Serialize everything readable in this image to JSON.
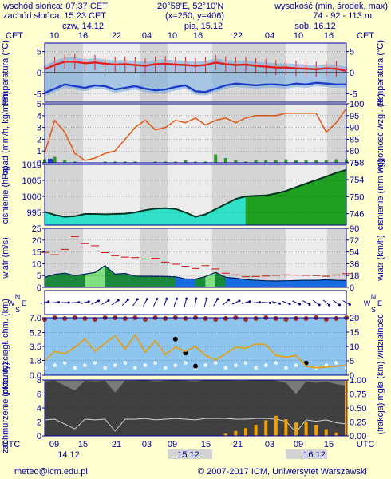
{
  "header": {
    "sunrise": "wschód słońca: 07:37 CET",
    "sunset": "zachód słońca: 15:23 CET",
    "coords": "20°58'E, 52°10'N",
    "grid": "(x=250, y=406)",
    "altitude_label": "wysokość (min, środek, max)",
    "altitude_values": "74 - 92 - 113 m"
  },
  "footer": {
    "email": "meteo@icm.edu.pl",
    "copyright": "© 2007-2017 ICM, Uniwersytet Warszawski"
  },
  "colors": {
    "background": "#ffffd0",
    "text": "#0000a0",
    "plot_bg": "#8ec5ee",
    "night_band": "#d4d4d4",
    "temperature": "#e02020",
    "dewpoint": "#1e3cc8",
    "humidity": "#e06020",
    "precip": "#2a9a2a",
    "pressure_fill": "#30e0c8",
    "pressure_fill_high": "#20a020",
    "wind_gust": "#d01010",
    "wind_fill": "#1a8a3a",
    "visibility": "#e0a020",
    "clouds_fill": "#404040",
    "fog_bars": "#f0a000"
  },
  "chart_data": {
    "type": "meteogram",
    "top_axis": {
      "timezone_label": "CET",
      "days": [
        "czw, 14.12",
        "pią, 15.12",
        "sob, 16.12"
      ],
      "ticks": [
        "10",
        "16",
        "22",
        "04",
        "10",
        "16",
        "22",
        "04",
        "10",
        "16"
      ]
    },
    "bottom_axis": {
      "timezone_label": "UTC",
      "ticks": [
        "09",
        "15",
        "21",
        "03",
        "09",
        "15",
        "21",
        "03",
        "09",
        "15"
      ],
      "dates": [
        "14.12",
        "15.12",
        "16.12"
      ]
    },
    "panels": [
      {
        "id": "temperature",
        "type": "line",
        "ylabel_left": "temperatura (°C)",
        "ylabel_right": "temperatura (°C)",
        "yticks": [
          -5,
          0,
          5
        ],
        "ylim": [
          -7,
          7
        ],
        "series": [
          {
            "values": [
              0.8,
              1.8,
              2.6,
              2.6,
              2.2,
              2.4,
              2.1,
              1.9,
              2.0,
              1.8,
              1.6,
              2.0,
              2.1,
              1.9,
              1.8,
              1.6,
              1.8,
              2.4,
              2.0,
              1.8,
              1.9,
              1.6,
              1.4,
              1.2,
              1.2,
              1.0,
              0.9,
              0.8,
              1.0,
              0.9,
              0.4
            ]
          },
          {
            "values": [
              -4.8,
              -3.8,
              -2.8,
              -3.2,
              -3.6,
              -3.0,
              -3.2,
              -4.0,
              -3.6,
              -3.2,
              -3.8,
              -4.2,
              -4.0,
              -3.4,
              -3.0,
              -4.4,
              -4.6,
              -3.8,
              -3.0,
              -2.6,
              -2.8,
              -3.0,
              -2.8,
              -2.8,
              -3.0,
              -2.6,
              -2.8,
              -2.4,
              -2.6,
              -2.8,
              -2.8
            ]
          }
        ]
      },
      {
        "id": "precipitation",
        "type": "bar+line",
        "ylabel_left": "opad (mm/h, kg/m²/h)",
        "ylabel_right": "wilgotność wzgl. (%)",
        "yticks": [
          0,
          1,
          2,
          3,
          4,
          5
        ],
        "yticks_right": [
          75,
          80,
          85,
          90,
          95,
          100
        ],
        "ylim": [
          0,
          5
        ],
        "ylim_right": [
          75,
          100
        ],
        "series": [
          {
            "values": [
              79,
              93,
              88,
              79,
              76,
              77,
              79,
              80,
              85,
              90,
              93,
              89,
              90,
              93,
              92,
              94,
              91,
              93,
              94,
              92,
              94,
              95,
              95,
              95,
              96,
              96,
              96,
              96,
              88,
              92,
              98
            ]
          }
        ],
        "precip_values": [
          0.3,
          0.5,
          0.2,
          0.1,
          0.0,
          0.0,
          0.1,
          0.1,
          0.1,
          0.1,
          0.0,
          0.1,
          0.1,
          0.1,
          0.2,
          0.1,
          0.1,
          0.7,
          0.4,
          0.2,
          0.1,
          0.2,
          0.2,
          0.2,
          0.3,
          0.2,
          0.2,
          0.2,
          0.2,
          0.3,
          0.3
        ]
      },
      {
        "id": "pressure",
        "type": "area",
        "ylabel_left": "ciśnienie (hPa)",
        "ylabel_right": "ciśnienie (mm Hg)",
        "yticks": [
          995,
          1000,
          1005,
          1010
        ],
        "yticks_right": [
          746,
          750,
          754,
          758
        ],
        "ylim": [
          991,
          1010
        ],
        "values": [
          995.2,
          994.2,
          993.6,
          993.8,
          994.5,
          994.5,
          994.4,
          994.5,
          994.6,
          995.0,
          995.7,
          996.2,
          996.3,
          996.1,
          995.0,
          993.6,
          994.4,
          996.0,
          997.6,
          999.2,
          1000.0,
          1000.2,
          1000.3,
          1000.9,
          1001.7,
          1002.9,
          1004.0,
          1005.1,
          1006.2,
          1007.4,
          1008.3
        ]
      },
      {
        "id": "wind",
        "type": "area+line",
        "ylabel_left": "wiatr (m/s)",
        "ylabel_right": "wiatr (km/h)",
        "yticks": [
          0,
          5,
          10,
          15,
          20,
          25
        ],
        "yticks_right": [
          0,
          18,
          36,
          54,
          72,
          90
        ],
        "ylim": [
          0,
          25
        ],
        "series": [
          {
            "values": [
              14.8,
              13.8,
              16.1,
              21.5,
              18.5,
              17.6,
              14.7,
              13.4,
              12.8,
              12.6,
              12.0,
              12.3,
              10.7,
              9.8,
              8.9,
              8.0,
              9.2,
              7.8,
              6.0,
              5.3,
              4.5,
              4.6,
              4.8,
              5.1,
              5.3,
              5.2,
              5.1,
              5.0,
              4.7,
              5.3,
              5.8
            ]
          },
          {
            "values": [
              4.3,
              5.5,
              6.0,
              5.0,
              5.6,
              6.3,
              9.2,
              5.6,
              5.9,
              4.8,
              4.7,
              4.7,
              4.6,
              4.5,
              3.6,
              3.5,
              4.6,
              6.4,
              4.3,
              3.9,
              3.3,
              3.0,
              2.8,
              2.7,
              2.8,
              2.9,
              3.0,
              3.0,
              3.2,
              3.0,
              2.9
            ]
          }
        ]
      },
      {
        "id": "wind_direction",
        "type": "arrows",
        "compass": [
          "W",
          "N",
          "S",
          "E"
        ],
        "values": [
          255,
          265,
          270,
          265,
          255,
          245,
          240,
          235,
          225,
          215,
          210,
          205,
          200,
          200,
          195,
          190,
          195,
          210,
          230,
          245,
          255,
          265,
          275,
          285,
          290,
          295,
          300,
          305,
          310,
          305,
          300
        ]
      },
      {
        "id": "clouds_visibility",
        "type": "scatter+line",
        "ylabel_left": "pion. rozciągł. chm. (km)",
        "ylabel_right": "(km) widzialność",
        "yticks": [
          0.0,
          1.8,
          3.5,
          5.2,
          7.0
        ],
        "yticks_right": [
          0,
          5,
          10,
          15,
          20
        ],
        "ylim": [
          0,
          7.0
        ],
        "ylim_right": [
          0,
          20
        ],
        "series": [
          {
            "values": [
              6.8,
              7.0,
              6.9,
              7.0,
              6.9,
              6.8,
              7.0,
              7.0,
              6.9,
              7.0,
              6.8,
              7.0,
              6.9,
              7.0,
              6.9,
              7.0,
              6.9,
              6.8,
              6.9,
              7.0,
              6.8,
              6.9,
              7.0,
              6.9,
              6.8,
              6.9,
              6.9,
              7.0,
              6.8,
              6.9,
              7.0
            ]
          },
          {
            "values": [
              1.8,
              2.9,
              2.6,
              3.4,
              4.4,
              2.9,
              3.9,
              4.8,
              3.2,
              4.9,
              2.8,
              4.2,
              2.5,
              3.4,
              2.9,
              3.5,
              2.4,
              1.9,
              2.6,
              3.4,
              3.3,
              3.8,
              3.7,
              2.4,
              2.2,
              2.4,
              1.1,
              0.9,
              1.0,
              1.1,
              1.2
            ]
          }
        ]
      },
      {
        "id": "cloud_cover",
        "type": "area+bar",
        "ylabel_left": "zachmurzenie (oktanty)",
        "ylabel_right": "(frakcja) mgła",
        "yticks": [
          0,
          2,
          4,
          6,
          8
        ],
        "yticks_right": [
          0.0,
          0.25,
          0.5,
          0.75,
          1.0
        ],
        "ylim": [
          0,
          8
        ],
        "ylim_right": [
          0,
          1
        ],
        "series": [
          {
            "values": [
              7.8,
              7.9,
              7.2,
              6.5,
              7.9,
              7.8,
              7.9,
              6.2,
              7.9,
              7.9,
              8.0,
              7.8,
              7.9,
              8.0,
              7.9,
              7.8,
              8.0,
              8.0,
              8.0,
              7.9,
              7.9,
              8.0,
              8.0,
              7.9,
              7.6,
              6.0,
              7.8,
              7.6,
              7.8,
              7.4,
              7.2
            ]
          },
          {
            "values": [
              0.0,
              0.0,
              0.0,
              0.0,
              0.0,
              0.0,
              0.0,
              0.0,
              0.0,
              0.0,
              0.0,
              0.0,
              0.0,
              0.0,
              0.0,
              0.0,
              0.0,
              0.0,
              0.04,
              0.09,
              0.14,
              0.2,
              0.28,
              0.36,
              0.3,
              0.24,
              0.26,
              0.2,
              0.12,
              0.06,
              1.0
            ]
          }
        ]
      }
    ]
  }
}
